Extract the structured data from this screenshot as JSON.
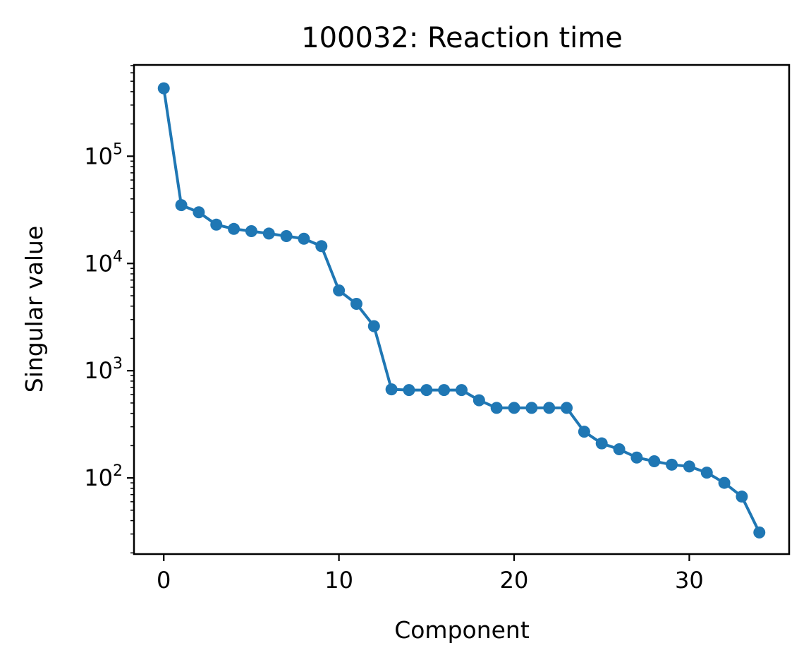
{
  "chart_data": {
    "type": "line",
    "title": "100032: Reaction time",
    "xlabel": "Component",
    "ylabel": "Singular value",
    "xlim": [
      -1.7,
      35.7
    ],
    "ylim": [
      19.5,
      710000
    ],
    "yscale": "log",
    "grid": false,
    "legend": "none",
    "color": "#1f77b4",
    "x_ticks": [
      0,
      10,
      20,
      30
    ],
    "y_ticks": [
      {
        "value": 100,
        "base": "10",
        "exp": "2"
      },
      {
        "value": 1000,
        "base": "10",
        "exp": "3"
      },
      {
        "value": 10000,
        "base": "10",
        "exp": "4"
      },
      {
        "value": 100000,
        "base": "10",
        "exp": "5"
      }
    ],
    "series": [
      {
        "x": [
          0,
          1,
          2,
          3,
          4,
          5,
          6,
          7,
          8,
          9,
          10,
          11,
          12,
          13,
          14,
          15,
          16,
          17,
          18,
          19,
          20,
          21,
          22,
          23,
          24,
          25,
          26,
          27,
          28,
          29,
          30,
          31,
          32,
          33,
          34
        ],
        "y": [
          430000,
          35000,
          30000,
          23000,
          21000,
          20000,
          19000,
          18000,
          17000,
          14500,
          5600,
          4200,
          2600,
          670,
          660,
          660,
          660,
          660,
          530,
          450,
          450,
          450,
          450,
          450,
          270,
          210,
          185,
          155,
          143,
          133,
          128,
          112,
          90,
          67,
          31
        ]
      }
    ]
  }
}
